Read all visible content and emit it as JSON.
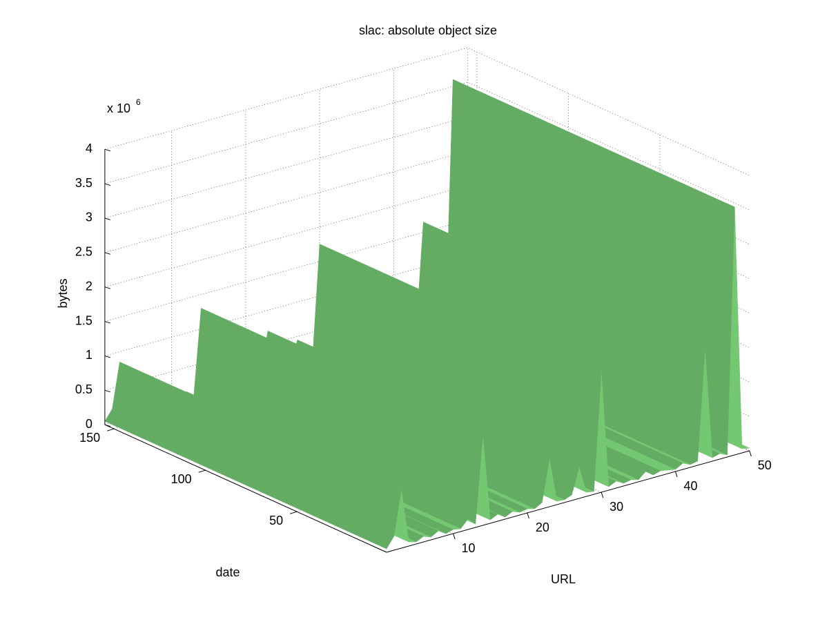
{
  "chart_data": {
    "type": "surface",
    "title": "slac: absolute object size",
    "xlabel": "URL",
    "ylabel": "date",
    "zlabel": "bytes",
    "zscale_label": "x 10",
    "zscale_exponent": "6",
    "x": [
      1,
      2,
      3,
      4,
      5,
      6,
      7,
      8,
      9,
      10,
      11,
      12,
      13,
      14,
      15,
      16,
      17,
      18,
      19,
      20,
      21,
      22,
      23,
      24,
      25,
      26,
      27,
      28,
      29,
      30,
      31,
      32,
      33,
      34,
      35,
      36,
      37,
      38,
      39,
      40,
      41,
      42,
      43,
      44,
      45,
      46,
      47,
      48,
      49,
      50
    ],
    "values": [
      50000,
      200000,
      850000,
      60000,
      30000,
      80000,
      40000,
      100000,
      30000,
      60000,
      40000,
      150000,
      50000,
      1300000,
      50000,
      100000,
      30000,
      80000,
      40000,
      60000,
      30000,
      90000,
      700000,
      50000,
      40000,
      80000,
      450000,
      60000,
      40000,
      1750000,
      50000,
      100000,
      40000,
      60000,
      30000,
      120000,
      40000,
      70000,
      50000,
      30000,
      90000,
      40000,
      60000,
      1650000,
      50000,
      80000,
      30000,
      3600000,
      60000,
      40000
    ],
    "color": "#6cb96a",
    "xlim": [
      1,
      50
    ],
    "ylim": [
      1,
      155
    ],
    "zlim": [
      0,
      4000000
    ],
    "xticks": [
      10,
      20,
      30,
      40,
      50
    ],
    "yticks": [
      50,
      100,
      150
    ],
    "zticks": [
      {
        "value": 0,
        "label": "0"
      },
      {
        "value": 500000,
        "label": "0.5"
      },
      {
        "value": 1000000,
        "label": "1"
      },
      {
        "value": 1500000,
        "label": "1.5"
      },
      {
        "value": 2000000,
        "label": "2"
      },
      {
        "value": 2500000,
        "label": "2.5"
      },
      {
        "value": 3000000,
        "label": "3"
      },
      {
        "value": 3500000,
        "label": "3.5"
      },
      {
        "value": 4000000,
        "label": "4"
      }
    ],
    "grid": true
  }
}
